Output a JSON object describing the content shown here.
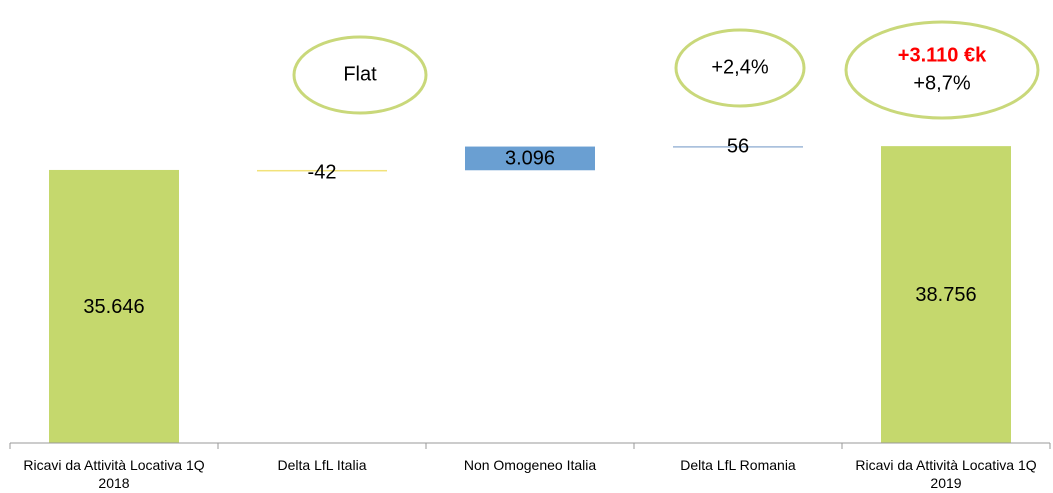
{
  "chart_data": {
    "type": "waterfall",
    "categories": [
      "Ricavi da Attività Locativa 1Q 2018",
      "Delta LfL Italia",
      "Non Omogeneo Italia",
      "Delta LfL Romania",
      "Ricavi da Attività Locativa 1Q 2019"
    ],
    "values": [
      35646,
      -42,
      3096,
      56,
      38756
    ],
    "value_labels": [
      "35.646",
      "-42",
      "3.096",
      "56",
      "38.756"
    ],
    "measure": [
      "total",
      "relative",
      "relative",
      "relative",
      "total"
    ],
    "colors": [
      "#c5d86d",
      "#f2e27a",
      "#6a9fd2",
      "#9db8d8",
      "#c5d86d"
    ],
    "ylim": [
      0,
      40000
    ],
    "annotations": [
      {
        "lines": [
          {
            "text": "Flat"
          }
        ]
      },
      {
        "lines": [
          {
            "text": "+2,4%"
          }
        ]
      },
      {
        "lines": [
          {
            "text": "+3.110 €k",
            "color": "#ff0000",
            "bold": true
          },
          {
            "text": "+8,7%"
          }
        ]
      }
    ]
  }
}
